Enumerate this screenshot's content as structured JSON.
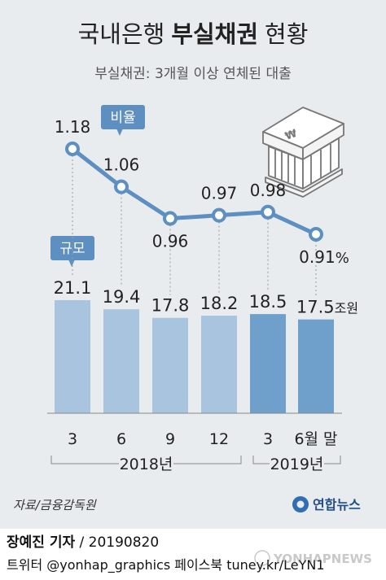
{
  "title_normal_1": "국내은행",
  "title_bold": "부실채권",
  "title_normal_2": "현황",
  "subtitle": "부실채권: 3개월 이상 연체된 대출",
  "badge_ratio": "비율",
  "badge_size": "규모",
  "source": "자료/금융감독원",
  "agency_logo_text": "연합뉴스",
  "byline_name": "장예진 기자",
  "byline_date": "/ 20190820",
  "social_text": "트위터 @yonhap_graphics  페이스북 tuney.kr/LeYN1",
  "watermark_text": "YONHAPNEWS",
  "colors": {
    "background": "#e9ecef",
    "bar_2018": "#a8c4de",
    "bar_2019": "#6f9fcb",
    "line": "#5e8fc1",
    "badge": "#5e8fc1"
  },
  "chart_data": {
    "type": "bar+line",
    "categories": [
      "3",
      "6",
      "9",
      "12",
      "3",
      "6월 말"
    ],
    "year_groups": [
      {
        "label": "2018년",
        "categories": [
          "3",
          "6",
          "9",
          "12"
        ]
      },
      {
        "label": "2019년",
        "categories": [
          "3",
          "6월 말"
        ]
      }
    ],
    "series": [
      {
        "name": "규모",
        "type": "bar",
        "unit": "조원",
        "values": [
          21.1,
          19.4,
          17.8,
          18.2,
          18.5,
          17.5
        ]
      },
      {
        "name": "비율",
        "type": "line",
        "unit": "%",
        "values": [
          1.18,
          1.06,
          0.96,
          0.97,
          0.98,
          0.91
        ]
      }
    ],
    "bar_label_unit": "조원",
    "line_label_unit": "%",
    "grid": false
  }
}
